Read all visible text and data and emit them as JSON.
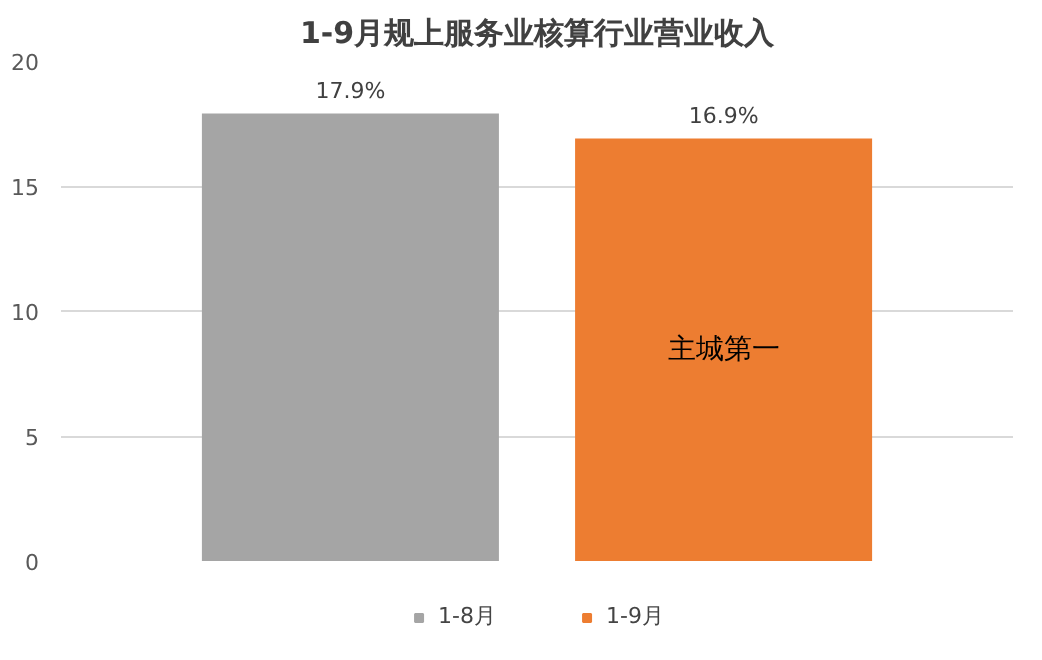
{
  "chart_data": {
    "type": "bar",
    "title": "1-9月规上服务业核算行业营业收入",
    "categories": [
      null
    ],
    "series": [
      {
        "name": "1-8月",
        "color": "#a5a5a5",
        "values": [
          17.9
        ],
        "value_labels": [
          "17.9%"
        ]
      },
      {
        "name": "1-9月",
        "color": "#ed7d31",
        "values": [
          16.9
        ],
        "value_labels": [
          "16.9%"
        ]
      }
    ],
    "ylim": [
      0,
      20
    ],
    "yticks": [
      0,
      5,
      10,
      15,
      20
    ],
    "grid": "y",
    "legend": "bottom",
    "annotations": [
      "主城第一"
    ]
  }
}
